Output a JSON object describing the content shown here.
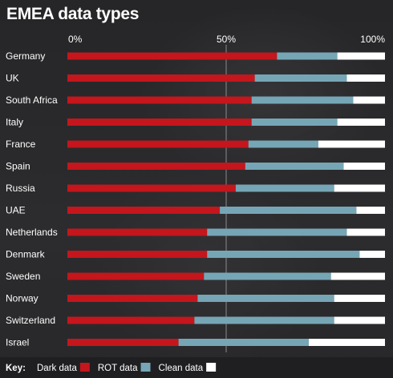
{
  "chart_data": {
    "type": "bar",
    "orientation": "horizontal",
    "stacked": true,
    "title": "EMEA data types",
    "xlim": [
      0,
      100
    ],
    "xticks": [
      "0%",
      "50%",
      "100%"
    ],
    "gridline_at": 50,
    "categories": [
      "Germany",
      "UK",
      "South Africa",
      "Italy",
      "France",
      "Spain",
      "Russia",
      "UAE",
      "Netherlands",
      "Denmark",
      "Sweden",
      "Norway",
      "Switzerland",
      "Israel"
    ],
    "series": [
      {
        "name": "Dark data",
        "color": "#c4161c",
        "values": [
          66,
          59,
          58,
          58,
          57,
          56,
          53,
          48,
          44,
          44,
          43,
          41,
          40,
          35
        ]
      },
      {
        "name": "ROT data",
        "color": "#76a6b5",
        "values": [
          19,
          29,
          32,
          27,
          22,
          31,
          31,
          43,
          44,
          48,
          40,
          43,
          44,
          41
        ]
      },
      {
        "name": "Clean data",
        "color": "#ffffff",
        "values": [
          15,
          12,
          10,
          15,
          21,
          13,
          16,
          9,
          12,
          8,
          17,
          16,
          16,
          24
        ]
      }
    ],
    "legend": {
      "title": "Key:",
      "placement": "bottom-left"
    }
  }
}
